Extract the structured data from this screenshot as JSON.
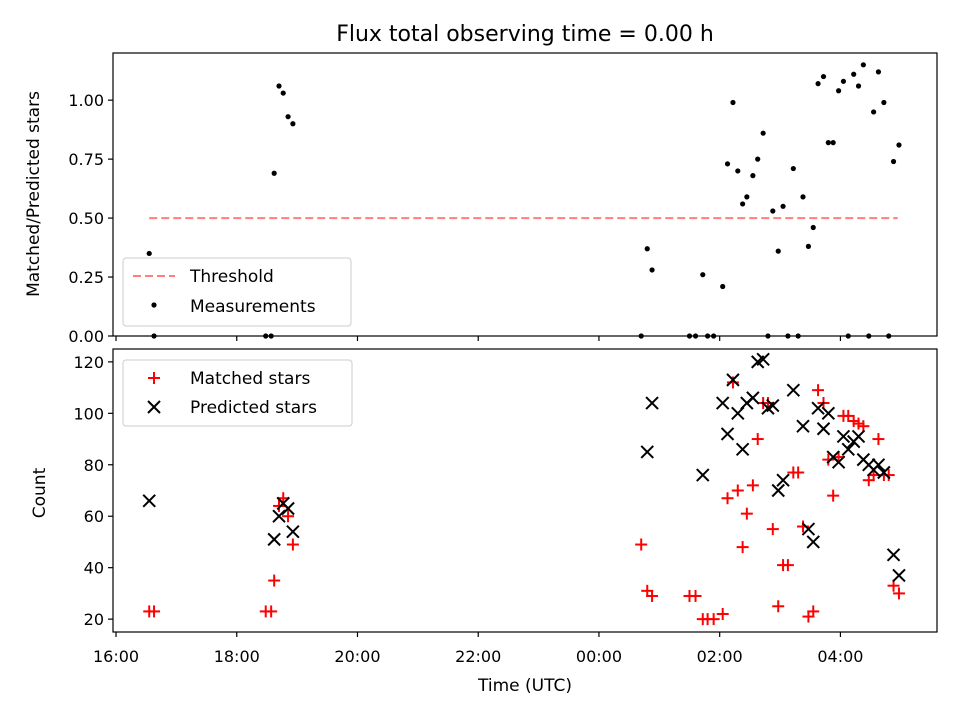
{
  "title": "Flux total observing time = 0.00 h",
  "colors": {
    "threshold": "#ff7f7f",
    "measurements": "#000000",
    "matched": "#ff0000",
    "predicted": "#000000"
  },
  "chart_data": [
    {
      "type": "scatter",
      "panel": "top",
      "title": "Flux total observing time = 0.00 h",
      "ylabel": "Matched/Predicted stars",
      "xlim": [
        15.95,
        29.6
      ],
      "ylim": [
        0,
        1.2
      ],
      "yticks": [
        "0.00",
        "0.25",
        "0.50",
        "0.75",
        "1.00"
      ],
      "yticks_values": [
        0,
        0.25,
        0.5,
        0.75,
        1.0
      ],
      "legend": {
        "position": "lower-left",
        "entries": [
          "Threshold",
          "Measurements"
        ]
      },
      "threshold": {
        "name": "Threshold",
        "value": 0.5,
        "x_range": [
          16.55,
          28.95
        ]
      },
      "series": [
        {
          "name": "Measurements",
          "marker": "dot",
          "points": [
            [
              16.55,
              0.35
            ],
            [
              16.63,
              0.0
            ],
            [
              18.48,
              0.0
            ],
            [
              18.57,
              0.0
            ],
            [
              18.62,
              0.69
            ],
            [
              18.7,
              1.06
            ],
            [
              18.77,
              1.03
            ],
            [
              18.85,
              0.93
            ],
            [
              18.93,
              0.9
            ],
            [
              24.7,
              0.0
            ],
            [
              24.8,
              0.37
            ],
            [
              24.88,
              0.28
            ],
            [
              25.5,
              0.0
            ],
            [
              25.6,
              0.0
            ],
            [
              25.72,
              0.26
            ],
            [
              25.8,
              0.0
            ],
            [
              25.9,
              0.0
            ],
            [
              26.05,
              0.21
            ],
            [
              26.13,
              0.73
            ],
            [
              26.22,
              0.99
            ],
            [
              26.3,
              0.7
            ],
            [
              26.38,
              0.56
            ],
            [
              26.45,
              0.59
            ],
            [
              26.55,
              0.68
            ],
            [
              26.63,
              0.75
            ],
            [
              26.72,
              0.86
            ],
            [
              26.8,
              0.0
            ],
            [
              26.88,
              0.53
            ],
            [
              26.97,
              0.36
            ],
            [
              27.05,
              0.55
            ],
            [
              27.13,
              0.0
            ],
            [
              27.22,
              0.71
            ],
            [
              27.3,
              0.0
            ],
            [
              27.38,
              0.59
            ],
            [
              27.47,
              0.38
            ],
            [
              27.55,
              0.46
            ],
            [
              27.63,
              1.07
            ],
            [
              27.72,
              1.1
            ],
            [
              27.8,
              0.82
            ],
            [
              27.88,
              0.82
            ],
            [
              27.97,
              1.04
            ],
            [
              28.05,
              1.08
            ],
            [
              28.13,
              0.0
            ],
            [
              28.22,
              1.11
            ],
            [
              28.3,
              1.06
            ],
            [
              28.38,
              1.15
            ],
            [
              28.47,
              0.0
            ],
            [
              28.55,
              0.95
            ],
            [
              28.63,
              1.12
            ],
            [
              28.72,
              0.99
            ],
            [
              28.8,
              0.0
            ],
            [
              28.88,
              0.74
            ],
            [
              28.97,
              0.81
            ]
          ]
        }
      ]
    },
    {
      "type": "scatter",
      "panel": "bottom",
      "xlabel": "Time (UTC)",
      "ylabel": "Count",
      "xlim": [
        15.95,
        29.6
      ],
      "ylim": [
        15,
        125
      ],
      "xticks": [
        "16:00",
        "18:00",
        "20:00",
        "22:00",
        "00:00",
        "02:00",
        "04:00"
      ],
      "xticks_values": [
        16,
        18,
        20,
        22,
        24,
        26,
        28
      ],
      "yticks": [
        "20",
        "40",
        "60",
        "80",
        "100",
        "120"
      ],
      "yticks_values": [
        20,
        40,
        60,
        80,
        100,
        120
      ],
      "legend": {
        "position": "upper-left",
        "entries": [
          "Matched stars",
          "Predicted stars"
        ]
      },
      "series": [
        {
          "name": "Matched stars",
          "marker": "plus",
          "points": [
            [
              16.55,
              23
            ],
            [
              16.63,
              23
            ],
            [
              18.48,
              23
            ],
            [
              18.57,
              23
            ],
            [
              18.62,
              35
            ],
            [
              18.7,
              64
            ],
            [
              18.77,
              67
            ],
            [
              18.85,
              60
            ],
            [
              18.93,
              49
            ],
            [
              24.7,
              49
            ],
            [
              24.8,
              31
            ],
            [
              24.88,
              29
            ],
            [
              25.5,
              29
            ],
            [
              25.6,
              29
            ],
            [
              25.72,
              20
            ],
            [
              25.8,
              20
            ],
            [
              25.9,
              20
            ],
            [
              26.05,
              22
            ],
            [
              26.13,
              67
            ],
            [
              26.22,
              112
            ],
            [
              26.3,
              70
            ],
            [
              26.38,
              48
            ],
            [
              26.45,
              61
            ],
            [
              26.55,
              72
            ],
            [
              26.63,
              90
            ],
            [
              26.72,
              104
            ],
            [
              26.8,
              104
            ],
            [
              26.88,
              55
            ],
            [
              26.97,
              25
            ],
            [
              27.05,
              41
            ],
            [
              27.13,
              41
            ],
            [
              27.22,
              77
            ],
            [
              27.3,
              77
            ],
            [
              27.38,
              56
            ],
            [
              27.47,
              21
            ],
            [
              27.55,
              23
            ],
            [
              27.63,
              109
            ],
            [
              27.72,
              104
            ],
            [
              27.8,
              82
            ],
            [
              27.88,
              68
            ],
            [
              27.97,
              83
            ],
            [
              28.05,
              99
            ],
            [
              28.13,
              99
            ],
            [
              28.22,
              97
            ],
            [
              28.3,
              96
            ],
            [
              28.38,
              95
            ],
            [
              28.47,
              74
            ],
            [
              28.55,
              76
            ],
            [
              28.63,
              90
            ],
            [
              28.72,
              76
            ],
            [
              28.8,
              76
            ],
            [
              28.88,
              33
            ],
            [
              28.97,
              30
            ]
          ]
        },
        {
          "name": "Predicted stars",
          "marker": "x",
          "points": [
            [
              16.55,
              66
            ],
            [
              18.62,
              51
            ],
            [
              18.7,
              60
            ],
            [
              18.77,
              65
            ],
            [
              18.85,
              63
            ],
            [
              18.93,
              54
            ],
            [
              24.8,
              85
            ],
            [
              24.88,
              104
            ],
            [
              25.72,
              76
            ],
            [
              26.05,
              104
            ],
            [
              26.13,
              92
            ],
            [
              26.22,
              113
            ],
            [
              26.3,
              100
            ],
            [
              26.38,
              86
            ],
            [
              26.45,
              104
            ],
            [
              26.55,
              106
            ],
            [
              26.63,
              120
            ],
            [
              26.72,
              121
            ],
            [
              26.8,
              102
            ],
            [
              26.88,
              103
            ],
            [
              26.97,
              70
            ],
            [
              27.05,
              74
            ],
            [
              27.22,
              109
            ],
            [
              27.38,
              95
            ],
            [
              27.47,
              55
            ],
            [
              27.55,
              50
            ],
            [
              27.63,
              102
            ],
            [
              27.72,
              94
            ],
            [
              27.8,
              100
            ],
            [
              27.88,
              83
            ],
            [
              27.97,
              81
            ],
            [
              28.05,
              91
            ],
            [
              28.13,
              86
            ],
            [
              28.22,
              89
            ],
            [
              28.3,
              91
            ],
            [
              28.38,
              82
            ],
            [
              28.47,
              80
            ],
            [
              28.55,
              78
            ],
            [
              28.63,
              80
            ],
            [
              28.72,
              77
            ],
            [
              28.88,
              45
            ],
            [
              28.97,
              37
            ]
          ]
        }
      ]
    }
  ]
}
